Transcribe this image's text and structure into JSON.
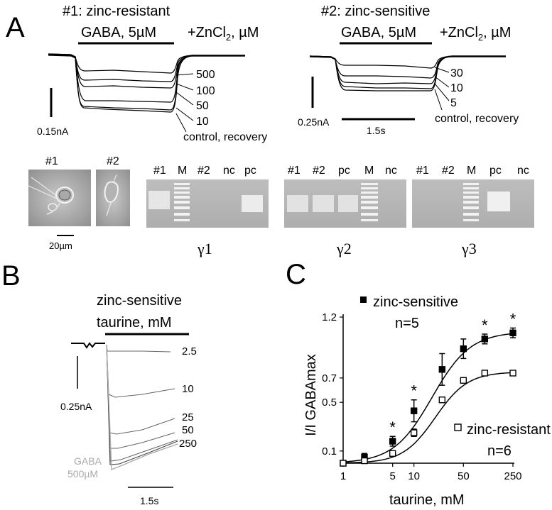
{
  "panel_a": {
    "letter": "A",
    "cell1": {
      "title": "#1:  zinc-resistant",
      "stim": "GABA, 5µM",
      "zn": "+ZnCl",
      "zn_sub": "2",
      "zn_unit": ", µM",
      "trace_labels": [
        "500",
        "100",
        "50",
        "10",
        "control, recovery"
      ],
      "scale": "0.15nA"
    },
    "cell2": {
      "title": "#2:  zinc-sensitive",
      "stim": "GABA, 5µM",
      "zn": "+ZnCl",
      "zn_sub": "2",
      "zn_unit": ", µM",
      "trace_labels": [
        "30",
        "10",
        "5",
        "control, recovery"
      ],
      "scale": "0.25nA",
      "time_scale": "1.5s"
    },
    "photos": {
      "labels": [
        "#1",
        "#2"
      ],
      "scale": "20µm"
    },
    "gels": [
      {
        "lanes": [
          "#1",
          "M",
          "#2",
          "nc",
          "pc"
        ],
        "subunit": "γ1"
      },
      {
        "lanes": [
          "#1",
          "#2",
          "pc",
          "M",
          "nc"
        ],
        "subunit": "γ2"
      },
      {
        "lanes": [
          "#1",
          "#2",
          "M",
          "pc",
          "nc"
        ],
        "subunit": "γ3"
      }
    ]
  },
  "panel_b": {
    "letter": "B",
    "title": "zinc-sensitive",
    "stim": "taurine, mM",
    "trace_labels": [
      "2.5",
      "10",
      "25",
      "50",
      "250"
    ],
    "gaba_label": [
      "GABA",
      "500µM"
    ],
    "scale": "0.25nA",
    "time_scale": "1.5s"
  },
  "panel_c": {
    "letter": "C"
  },
  "chart_data": {
    "type": "scatter",
    "title": "",
    "xlabel": "taurine, mM",
    "ylabel": "I/I GABAmax",
    "x_scale": "log",
    "xlim": [
      1,
      250
    ],
    "ylim": [
      0,
      1.2
    ],
    "x_ticks": [
      "1",
      "5",
      "10",
      "50",
      "250"
    ],
    "y_ticks": [
      "0.1",
      "0.5",
      "0.7",
      "1.2"
    ],
    "legend": [
      {
        "marker": "filled-square",
        "label": "zinc-sensitive",
        "n": "n=5"
      },
      {
        "marker": "open-square",
        "label": "zinc-resistant",
        "n": "n=6"
      }
    ],
    "series": [
      {
        "name": "zinc-sensitive",
        "marker": "filled",
        "x": [
          1,
          2,
          5,
          10,
          25,
          50,
          100,
          250
        ],
        "y": [
          0.0,
          0.05,
          0.18,
          0.43,
          0.77,
          0.94,
          1.02,
          1.07
        ],
        "err": [
          0.01,
          0.03,
          0.04,
          0.09,
          0.13,
          0.08,
          0.04,
          0.04
        ],
        "significant": [
          false,
          false,
          true,
          true,
          false,
          false,
          true,
          true
        ]
      },
      {
        "name": "zinc-resistant",
        "marker": "open",
        "x": [
          1,
          2,
          5,
          10,
          25,
          50,
          100,
          250
        ],
        "y": [
          0.0,
          0.02,
          0.08,
          0.25,
          0.52,
          0.68,
          0.74,
          0.74
        ],
        "err": [
          0.01,
          0.01,
          0.02,
          0.03,
          0.02,
          0.02,
          0.015,
          0.015
        ]
      }
    ],
    "fits": [
      {
        "series": "zinc-sensitive",
        "max": 1.08,
        "ec50": 18,
        "hill": 1.6
      },
      {
        "series": "zinc-resistant",
        "max": 0.75,
        "ec50": 20,
        "hill": 1.9
      }
    ],
    "annotation": "*"
  }
}
